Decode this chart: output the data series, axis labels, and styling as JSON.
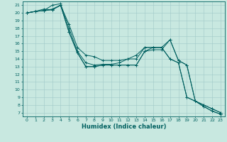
{
  "title": "",
  "xlabel": "Humidex (Indice chaleur)",
  "bg_color": "#c8e8e0",
  "line_color": "#006060",
  "grid_color": "#a0c8c8",
  "xlim": [
    -0.5,
    23.5
  ],
  "ylim": [
    6.5,
    21.5
  ],
  "yticks": [
    7,
    8,
    9,
    10,
    11,
    12,
    13,
    14,
    15,
    16,
    17,
    18,
    19,
    20,
    21
  ],
  "xticks": [
    0,
    1,
    2,
    3,
    4,
    5,
    6,
    7,
    8,
    9,
    10,
    11,
    12,
    13,
    14,
    15,
    16,
    17,
    18,
    19,
    20,
    21,
    22,
    23
  ],
  "lines": [
    {
      "x": [
        0,
        1,
        2,
        3,
        4,
        5,
        6,
        7,
        8,
        9,
        10,
        11,
        12,
        13,
        14,
        15,
        16,
        17,
        18,
        19,
        20,
        21,
        22,
        23
      ],
      "y": [
        20,
        20.2,
        20.3,
        21,
        21.2,
        18,
        15,
        13.5,
        13.2,
        13.3,
        13.3,
        13.5,
        14,
        14,
        15.5,
        15.5,
        15.5,
        14,
        13.5,
        9,
        8.5,
        8,
        7.5,
        7
      ]
    },
    {
      "x": [
        0,
        1,
        2,
        3,
        4,
        5,
        6,
        7,
        8,
        9,
        10,
        11,
        12,
        13,
        14,
        15,
        16,
        17,
        18,
        19,
        20,
        21,
        22,
        23
      ],
      "y": [
        20,
        20.2,
        20.5,
        20.4,
        21,
        17.5,
        14.8,
        13,
        13,
        13.2,
        13.2,
        13.2,
        13.2,
        13.2,
        15,
        15.2,
        15.2,
        16.5,
        13.8,
        13.2,
        8.5,
        7.8,
        7.2,
        6.8
      ]
    },
    {
      "x": [
        0,
        1,
        2,
        3,
        4,
        5,
        6,
        7,
        8,
        9,
        10,
        11,
        12,
        13,
        14,
        15,
        16,
        17,
        18,
        19,
        20,
        21,
        22,
        23
      ],
      "y": [
        20,
        20.2,
        20.3,
        20.5,
        21,
        17.5,
        14.8,
        13,
        13,
        13.2,
        13.2,
        13.2,
        13.2,
        13.2,
        15,
        15.5,
        15.5,
        16.5,
        13.8,
        13.2,
        8.5,
        7.8,
        7.2,
        6.8
      ]
    },
    {
      "x": [
        0,
        1,
        2,
        3,
        4,
        5,
        6,
        7,
        8,
        9,
        10,
        11,
        12,
        13,
        14,
        15,
        16,
        17,
        18,
        19,
        20,
        21,
        22,
        23
      ],
      "y": [
        20,
        20.2,
        20.3,
        20.4,
        21,
        18.5,
        15.5,
        14.5,
        14.3,
        13.8,
        13.8,
        13.8,
        14,
        14.5,
        15.5,
        15.5,
        15.5,
        14,
        13.5,
        9,
        8.5,
        8,
        7.5,
        7
      ]
    }
  ],
  "tick_fontsize": 4.5,
  "xlabel_fontsize": 6.0
}
